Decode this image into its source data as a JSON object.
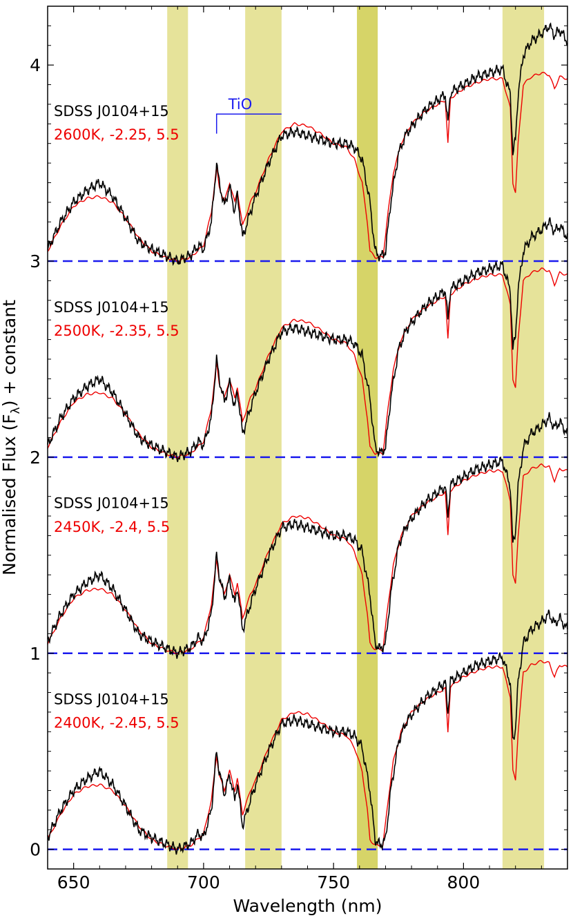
{
  "chart_data": {
    "type": "line",
    "xlabel": "Wavelength (nm)",
    "ylabel": "Normalised Flux (F",
    "ylabel_sub": "λ",
    "ylabel_suffix": ") + constant",
    "xlim": [
      640,
      840
    ],
    "ylim": [
      -0.1,
      4.3
    ],
    "xticks": [
      650,
      700,
      750,
      800
    ],
    "yticks": [
      0,
      1,
      2,
      3,
      4
    ],
    "grid": false,
    "colors": {
      "observed": "#000000",
      "model": "#ee0000",
      "baseline": "#1a1aee",
      "band_light": "#e6e39a",
      "band_dark": "#d6d468",
      "tio": "#1a1aee"
    },
    "bands": [
      {
        "x0": 686,
        "x1": 694,
        "shade": "light"
      },
      {
        "x0": 716,
        "x1": 730,
        "shade": "light"
      },
      {
        "x0": 759,
        "x1": 767,
        "shade": "dark"
      },
      {
        "x0": 815,
        "x1": 831,
        "shade": "light"
      }
    ],
    "baselines": [
      0,
      1,
      2,
      3
    ],
    "tio_label": {
      "text": "TiO",
      "x0": 705,
      "x1": 730,
      "y": 3.75,
      "tick_bottom": 3.65
    },
    "spectra": [
      {
        "offset": 3,
        "object": "SDSS J0104+15",
        "model": "2600K, -2.25, 5.5"
      },
      {
        "offset": 2,
        "object": "SDSS J0104+15",
        "model": "2500K, -2.35, 5.5"
      },
      {
        "offset": 1,
        "object": "SDSS J0104+15",
        "model": "2450K, -2.4, 5.5"
      },
      {
        "offset": 0,
        "object": "SDSS J0104+15",
        "model": "2400K, -2.45, 5.5"
      }
    ],
    "model_shape": [
      [
        640,
        0.05
      ],
      [
        645,
        0.18
      ],
      [
        650,
        0.28
      ],
      [
        655,
        0.32
      ],
      [
        660,
        0.33
      ],
      [
        665,
        0.3
      ],
      [
        670,
        0.22
      ],
      [
        675,
        0.12
      ],
      [
        680,
        0.05
      ],
      [
        685,
        0.02
      ],
      [
        690,
        0.0
      ],
      [
        695,
        0.02
      ],
      [
        700,
        0.08
      ],
      [
        703,
        0.25
      ],
      [
        705,
        0.48
      ],
      [
        706,
        0.38
      ],
      [
        708,
        0.3
      ],
      [
        710,
        0.4
      ],
      [
        712,
        0.3
      ],
      [
        713,
        0.36
      ],
      [
        715,
        0.18
      ],
      [
        718,
        0.3
      ],
      [
        720,
        0.35
      ],
      [
        725,
        0.52
      ],
      [
        730,
        0.66
      ],
      [
        735,
        0.7
      ],
      [
        740,
        0.69
      ],
      [
        745,
        0.65
      ],
      [
        750,
        0.6
      ],
      [
        755,
        0.58
      ],
      [
        758,
        0.52
      ],
      [
        761,
        0.4
      ],
      [
        763,
        0.2
      ],
      [
        764,
        0.05
      ],
      [
        766,
        0.02
      ],
      [
        769,
        0.02
      ],
      [
        771,
        0.25
      ],
      [
        773,
        0.45
      ],
      [
        776,
        0.6
      ],
      [
        780,
        0.7
      ],
      [
        785,
        0.76
      ],
      [
        790,
        0.8
      ],
      [
        793,
        0.82
      ],
      [
        794,
        0.6
      ],
      [
        795,
        0.83
      ],
      [
        800,
        0.88
      ],
      [
        805,
        0.91
      ],
      [
        810,
        0.93
      ],
      [
        815,
        0.93
      ],
      [
        818,
        0.78
      ],
      [
        819,
        0.4
      ],
      [
        820,
        0.35
      ],
      [
        821,
        0.6
      ],
      [
        823,
        0.9
      ],
      [
        826,
        0.94
      ],
      [
        830,
        0.96
      ],
      [
        833,
        0.95
      ],
      [
        835,
        0.88
      ],
      [
        837,
        0.94
      ],
      [
        840,
        0.93
      ]
    ],
    "observed_shape": [
      [
        640,
        0.06
      ],
      [
        645,
        0.2
      ],
      [
        650,
        0.3
      ],
      [
        655,
        0.36
      ],
      [
        660,
        0.4
      ],
      [
        665,
        0.33
      ],
      [
        670,
        0.22
      ],
      [
        675,
        0.1
      ],
      [
        680,
        0.06
      ],
      [
        685,
        0.03
      ],
      [
        690,
        0.0
      ],
      [
        695,
        0.03
      ],
      [
        698,
        0.08
      ],
      [
        700,
        0.06
      ],
      [
        703,
        0.2
      ],
      [
        705,
        0.5
      ],
      [
        706,
        0.4
      ],
      [
        708,
        0.28
      ],
      [
        710,
        0.38
      ],
      [
        712,
        0.25
      ],
      [
        713,
        0.34
      ],
      [
        715,
        0.12
      ],
      [
        718,
        0.25
      ],
      [
        720,
        0.33
      ],
      [
        725,
        0.5
      ],
      [
        730,
        0.64
      ],
      [
        735,
        0.66
      ],
      [
        740,
        0.64
      ],
      [
        745,
        0.62
      ],
      [
        750,
        0.6
      ],
      [
        755,
        0.6
      ],
      [
        758,
        0.58
      ],
      [
        761,
        0.52
      ],
      [
        764,
        0.3
      ],
      [
        766,
        0.05
      ],
      [
        768,
        0.02
      ],
      [
        770,
        0.05
      ],
      [
        772,
        0.3
      ],
      [
        775,
        0.55
      ],
      [
        778,
        0.65
      ],
      [
        782,
        0.72
      ],
      [
        786,
        0.78
      ],
      [
        790,
        0.82
      ],
      [
        793,
        0.85
      ],
      [
        794,
        0.7
      ],
      [
        795,
        0.86
      ],
      [
        800,
        0.9
      ],
      [
        805,
        0.94
      ],
      [
        810,
        0.96
      ],
      [
        815,
        0.98
      ],
      [
        818,
        0.85
      ],
      [
        819,
        0.55
      ],
      [
        820,
        0.62
      ],
      [
        821,
        0.85
      ],
      [
        823,
        1.05
      ],
      [
        826,
        1.12
      ],
      [
        830,
        1.16
      ],
      [
        833,
        1.2
      ],
      [
        835,
        1.15
      ],
      [
        837,
        1.18
      ],
      [
        840,
        1.12
      ]
    ]
  }
}
